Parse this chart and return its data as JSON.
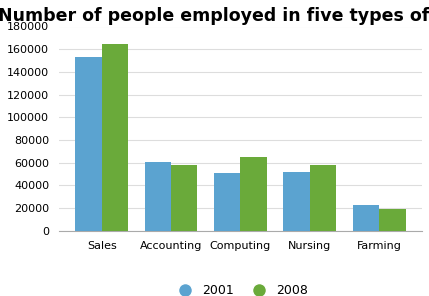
{
  "title": "Number of people employed in five types of work",
  "categories": [
    "Sales",
    "Accounting",
    "Computing",
    "Nursing",
    "Farming"
  ],
  "values_2001": [
    153000,
    61000,
    51000,
    52000,
    23000
  ],
  "values_2008": [
    165000,
    58000,
    65000,
    58000,
    19000
  ],
  "legend_labels": [
    "2001",
    "2008"
  ],
  "color_2001": "#5ba3d0",
  "color_2008": "#6aaa3a",
  "ylim": [
    0,
    180000
  ],
  "yticks": [
    0,
    20000,
    40000,
    60000,
    80000,
    100000,
    120000,
    140000,
    160000,
    180000
  ],
  "title_fontsize": 12.5,
  "tick_fontsize": 8,
  "legend_fontsize": 9,
  "bar_width": 0.38,
  "background_color": "#ffffff",
  "grid_color": "#dddddd",
  "spine_color": "#aaaaaa"
}
